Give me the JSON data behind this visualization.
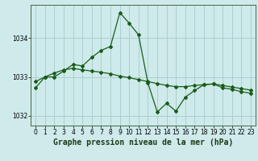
{
  "title": "Graphe pression niveau de la mer (hPa)",
  "bg_color": "#ceeaea",
  "grid_color": "#a8cccc",
  "line_color": "#1a5c1a",
  "xlim": [
    -0.5,
    23.5
  ],
  "ylim": [
    1031.75,
    1034.85
  ],
  "yticks": [
    1032,
    1033,
    1034
  ],
  "xticks": [
    0,
    1,
    2,
    3,
    4,
    5,
    6,
    7,
    8,
    9,
    10,
    11,
    12,
    13,
    14,
    15,
    16,
    17,
    18,
    19,
    20,
    21,
    22,
    23
  ],
  "line1_x": [
    0,
    1,
    2,
    3,
    4,
    5,
    6,
    7,
    8,
    9,
    10,
    11,
    12,
    13,
    14,
    15,
    16,
    17,
    18,
    19,
    20,
    21,
    22,
    23
  ],
  "line1_y": [
    1032.72,
    1033.0,
    1033.0,
    1033.15,
    1033.32,
    1033.28,
    1033.5,
    1033.68,
    1033.78,
    1034.65,
    1034.38,
    1034.08,
    1032.85,
    1032.1,
    1032.32,
    1032.12,
    1032.48,
    1032.65,
    1032.8,
    1032.82,
    1032.72,
    1032.68,
    1032.62,
    1032.58
  ],
  "line2_x": [
    0,
    1,
    2,
    3,
    4,
    5,
    6,
    7,
    8,
    9,
    10,
    11,
    12,
    13,
    14,
    15,
    16,
    17,
    18,
    19,
    20,
    21,
    22,
    23
  ],
  "line2_y": [
    1032.88,
    1033.0,
    1033.1,
    1033.18,
    1033.22,
    1033.18,
    1033.15,
    1033.12,
    1033.08,
    1033.02,
    1032.98,
    1032.93,
    1032.88,
    1032.83,
    1032.78,
    1032.75,
    1032.75,
    1032.78,
    1032.8,
    1032.82,
    1032.78,
    1032.74,
    1032.7,
    1032.66
  ],
  "tick_fontsize": 5.5,
  "title_fontsize": 7.0
}
